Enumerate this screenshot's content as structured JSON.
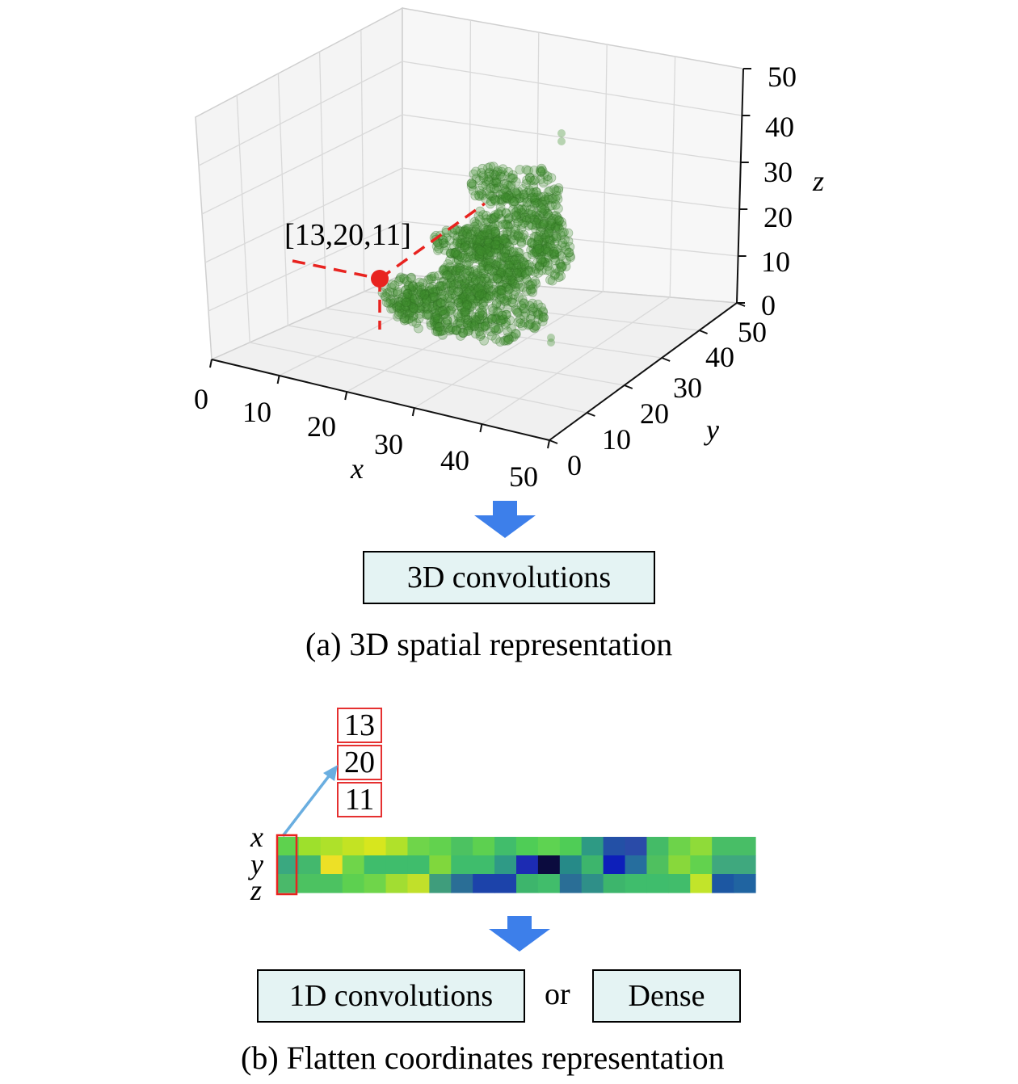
{
  "panel_a": {
    "point_label": "[13,20,11]",
    "point": {
      "x": 13,
      "y": 20,
      "z": 11
    },
    "axes": {
      "x": {
        "label": "x",
        "ticks": [
          "0",
          "10",
          "20",
          "30",
          "40",
          "50"
        ]
      },
      "y": {
        "label": "y",
        "ticks": [
          "0",
          "10",
          "20",
          "30",
          "40",
          "50"
        ]
      },
      "z": {
        "label": "z",
        "ticks": [
          "0",
          "10",
          "20",
          "30",
          "40",
          "50"
        ]
      }
    },
    "box_label": "3D convolutions",
    "caption": "(a) 3D spatial representation",
    "colors": {
      "points": "#3f8f2f",
      "highlight": "#e8231f",
      "arrow": "#3d7fea",
      "box_fill": "#e4f3f3"
    }
  },
  "panel_b": {
    "vector": [
      "13",
      "20",
      "11"
    ],
    "row_labels": [
      "x",
      "y",
      "z"
    ],
    "heatmap": [
      [
        "#5ed24e",
        "#9ee02c",
        "#aee12a",
        "#c3e323",
        "#d7e61e",
        "#b0e12a",
        "#6fd54a",
        "#62d24e",
        "#4cc261",
        "#5dd050",
        "#41bd6b",
        "#4fcd56",
        "#5ed351",
        "#4fcd56",
        "#2e9a84",
        "#2350a6",
        "#2a4ba8",
        "#44bb67",
        "#6dd34a",
        "#8fdb39",
        "#48be66",
        "#48be66"
      ],
      [
        "#3aa880",
        "#43b86d",
        "#ede026",
        "#6fd54a",
        "#3fbd6c",
        "#3fbd6c",
        "#3fbd6c",
        "#80d73d",
        "#3fbd6c",
        "#3fbd6c",
        "#2f9a86",
        "#1c2bb3",
        "#0b0b3e",
        "#268a88",
        "#3db56c",
        "#0d1fba",
        "#266e9e",
        "#4fc05f",
        "#88d83b",
        "#62d24e",
        "#3fa87e",
        "#3fa87e"
      ],
      [
        "#4ab96a",
        "#4cc261",
        "#4cc261",
        "#5dd050",
        "#6fd54a",
        "#a2dd32",
        "#c1e02a",
        "#3f9d7c",
        "#2a6e96",
        "#1c43aa",
        "#1c43aa",
        "#3db56c",
        "#41bd6b",
        "#2a6e96",
        "#2f8f88",
        "#3db56c",
        "#3fbd6c",
        "#3fbd6c",
        "#41bd6b",
        "#c2e42a",
        "#1c57a2",
        "#2064a1"
      ]
    ],
    "box1_label": "1D convolutions",
    "or_label": "or",
    "box2_label": "Dense",
    "caption": "(b) Flatten coordinates representation"
  }
}
